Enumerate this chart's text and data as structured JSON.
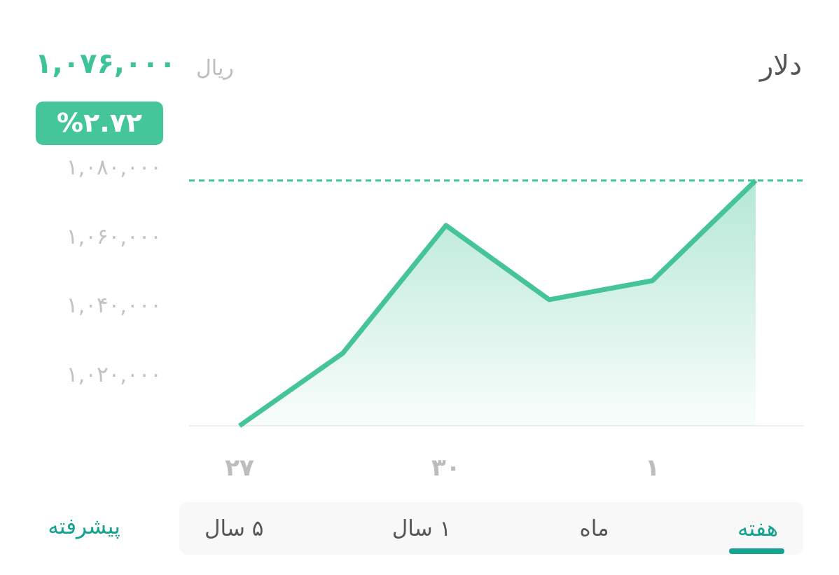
{
  "chart_data": {
    "type": "area",
    "title": "دلار",
    "subtitle": "۱,۰۷۶,۰۰۰",
    "categories": [
      "۲۷",
      null,
      "۳۰",
      null,
      "۱",
      null
    ],
    "series": [
      {
        "color": "#45c497",
        "values": [
          1005000,
          1026000,
          1063000,
          1041500,
          1047000,
          1076000
        ]
      }
    ],
    "ylim": [
      1005000,
      1080000
    ],
    "yticks": [
      {
        "value": 1020000,
        "label": "۱,۰۲۰,۰۰۰"
      },
      {
        "value": 1040000,
        "label": "۱,۰۴۰,۰۰۰"
      },
      {
        "value": 1060000,
        "label": "۱,۰۶۰,۰۰۰"
      },
      {
        "value": 1080000,
        "label": "۱,۰۸۰,۰۰۰"
      }
    ],
    "ref_lines": [
      {
        "axis": "y",
        "value": 1076000,
        "color": "#45c497",
        "line_style": "dashed"
      }
    ],
    "annotations": [
      "ریال",
      "%۲.۷۲",
      "هفته",
      "ماه",
      "۱ سال",
      "۵ سال",
      "پیشرفته"
    ]
  }
}
